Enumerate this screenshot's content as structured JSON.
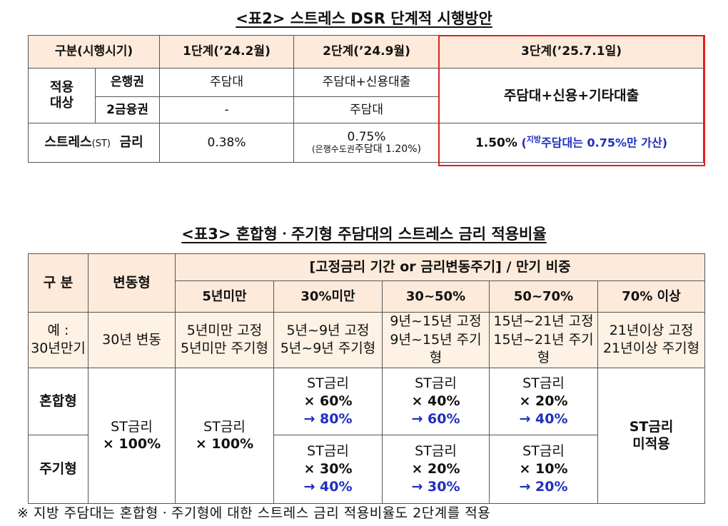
{
  "table2": {
    "title": "<표2> 스트레스 DSR 단계적 시행방안",
    "header": {
      "category": "구분(시행시기)",
      "stage1": "1단계(’24.2월)",
      "stage2": "2단계(’24.9월)",
      "stage3": "3단계(’25.7.1일)"
    },
    "target_label": "적용\n대상",
    "bank_label": "은행권",
    "second_tier_label": "2금융권",
    "bank": {
      "stage1": "주담대",
      "stage2": "주담대+신용대출"
    },
    "second_tier": {
      "stage1": "-",
      "stage2": "주담대"
    },
    "stage3_target": "주담대+신용+기타대출",
    "rate_label_main": "스트레스",
    "rate_label_st": "(ST)",
    "rate_label_end": "금리",
    "rate": {
      "stage1": "0.38%",
      "stage2_main": "0.75%",
      "stage2_sub_prefix": "(은행수도권",
      "stage2_sub_rest": "주담대  1.20%)",
      "stage3_main": "1.50%",
      "stage3_open": " (",
      "stage3_region": "지방",
      "stage3_note": "주담대는 0.75%만 가산",
      "stage3_close": ")"
    }
  },
  "table3": {
    "title": "<표3> 혼합형ㆍ주기형 주담대의 스트레스 금리 적용비율",
    "header": {
      "category": "구 분",
      "variable": "변동형",
      "group": "[고정금리 기간 or 금리변동주기] / 만기 비중",
      "cols": [
        "5년미만",
        "30%미만",
        "30~50%",
        "50~70%",
        "70% 이상"
      ]
    },
    "example": {
      "label": "예 :\n30년만기",
      "variable": "30년 변동",
      "cols": [
        "5년미만 고정\n5년미만 주기형",
        "5년~9년 고정\n5년~9년 주기형",
        "9년~15년 고정\n9년~15년 주기형",
        "15년~21년 고정\n15년~21년 주기형",
        "21년이상 고정\n21년이상 주기형"
      ]
    },
    "mixed_label": "혼합형",
    "cycle_label": "주기형",
    "variable_rate": {
      "line1": "ST금리",
      "line2": "× 100%"
    },
    "under5_rate": {
      "line1": "ST금리",
      "line2": "×  100%"
    },
    "mixed": [
      {
        "line1": "ST금리",
        "line2": "×  60%",
        "line3": "→  80%"
      },
      {
        "line1": "ST금리",
        "line2": "×  40%",
        "line3": "→  60%"
      },
      {
        "line1": "ST금리",
        "line2": "×  20%",
        "line3": "→  40%"
      }
    ],
    "cycle": [
      {
        "line1": "ST금리",
        "line2": "×  30%",
        "line3": "→  40%"
      },
      {
        "line1": "ST금리",
        "line2": "×  20%",
        "line3": "→  30%"
      },
      {
        "line1": "ST금리",
        "line2": "×  10%",
        "line3": "→  20%"
      }
    ],
    "over70": {
      "line1": "ST금리",
      "line2": "미적용"
    }
  },
  "footnote": "※ 지방 주담대는 혼합형ㆍ주기형에 대한 스트레스 금리 적용비율도 2단계를 적용"
}
